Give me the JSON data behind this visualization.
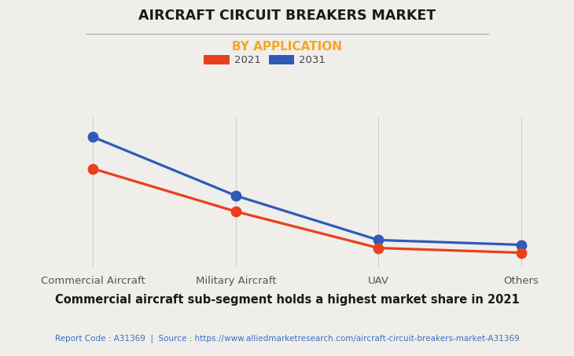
{
  "title": "AIRCRAFT CIRCUIT BREAKERS MARKET",
  "subtitle": "BY APPLICATION",
  "categories": [
    "Commercial Aircraft",
    "Military Aircraft",
    "UAV",
    "Others"
  ],
  "series_2021": [
    62,
    35,
    12,
    9
  ],
  "series_2031": [
    82,
    45,
    17,
    14
  ],
  "color_2021": "#e8401c",
  "color_2031": "#2e5bb8",
  "legend_labels": [
    "2021",
    "2031"
  ],
  "background_color": "#f0eeea",
  "subtitle_color": "#f5a623",
  "title_color": "#1a1a1a",
  "annotation": "Commercial aircraft sub-segment holds a highest market share in 2021",
  "footer": "Report Code : A31369  |  Source : https://www.alliedmarketresearch.com/aircraft-circuit-breakers-market-A31369",
  "footer_color": "#3a6fc4",
  "marker_size": 9,
  "line_width": 2.3
}
